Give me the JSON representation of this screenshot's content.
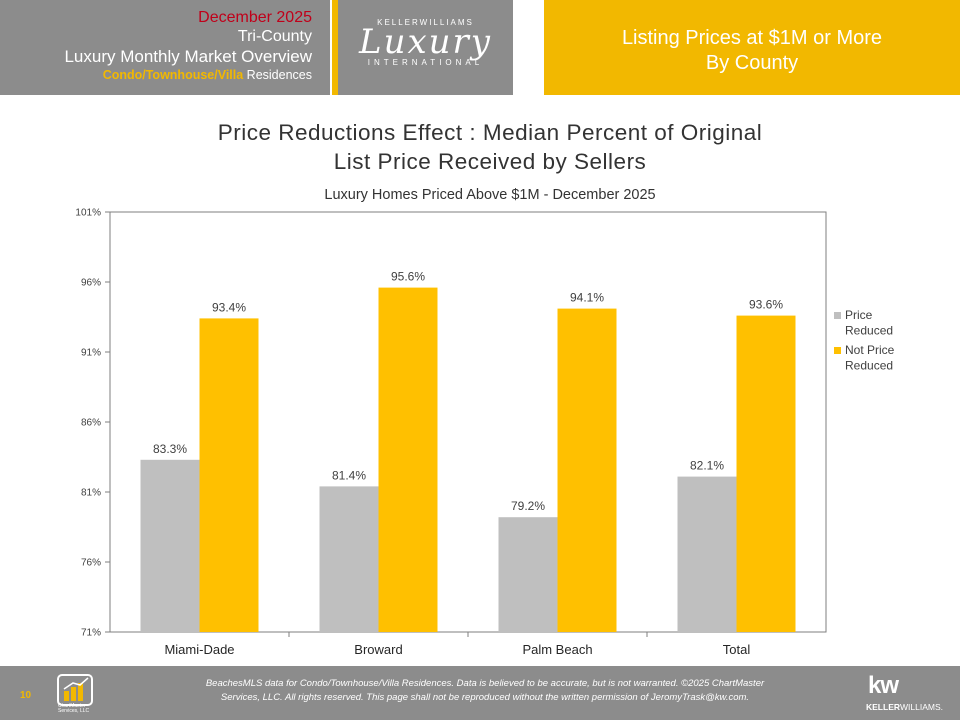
{
  "header": {
    "date": "December 2025",
    "region": "Tri-County",
    "report": "Luxury Monthly Market Overview",
    "segment_highlight": "Condo/Townhouse/Villa",
    "segment_rest": " Residences",
    "logo_top": "KELLERWILLIAMS",
    "logo_main": "Luxury",
    "logo_bottom": "INTERNATIONAL",
    "right_line1": "Listing Prices at $1M or More",
    "right_line2": "By County"
  },
  "colors": {
    "gray": "#bfbfbf",
    "gold": "#ffc000",
    "header_gray": "#8c8c8c",
    "header_gold": "#f2b800"
  },
  "chart_data": {
    "type": "bar",
    "title_line1": "Price Reductions Effect : Median Percent of Original",
    "title_line2": "List Price Received by Sellers",
    "subtitle": "Luxury Homes Priced Above $1M - December 2025",
    "categories": [
      "Miami-Dade",
      "Broward",
      "Palm Beach",
      "Total"
    ],
    "series": [
      {
        "name": "Price Reduced",
        "legend_lines": [
          "Price",
          "Reduced"
        ],
        "values": [
          83.3,
          81.4,
          79.2,
          82.1
        ],
        "labels": [
          "83.3%",
          "81.4%",
          "79.2%",
          "82.1%"
        ]
      },
      {
        "name": "Not Price Reduced",
        "legend_lines": [
          "Not Price",
          "Reduced"
        ],
        "values": [
          93.4,
          95.6,
          94.1,
          93.6
        ],
        "labels": [
          "93.4%",
          "95.6%",
          "94.1%",
          "93.6%"
        ]
      }
    ],
    "ylim": [
      71,
      101
    ],
    "yticks": [
      71,
      76,
      81,
      86,
      91,
      96,
      101
    ],
    "ytick_labels": [
      "71%",
      "76%",
      "81%",
      "86%",
      "91%",
      "96%",
      "101%"
    ],
    "grid": false,
    "legend": "right"
  },
  "footer": {
    "page": "10",
    "chartmaster_line1": "ChartMaster",
    "chartmaster_line2": "Services, LLC",
    "note_line1": "BeachesMLS data for Condo/Townhouse/Villa Residences.  Data is believed to be accurate, but is not warranted.   ©2025  ChartMaster",
    "note_line2": "Services, LLC.  All rights reserved. This page shall not be reproduced without the written permission of JeromyTrask@kw.com.",
    "kw_mark": "kw",
    "kw_word_bold": "KELLER",
    "kw_word_rest": "WILLIAMS."
  }
}
